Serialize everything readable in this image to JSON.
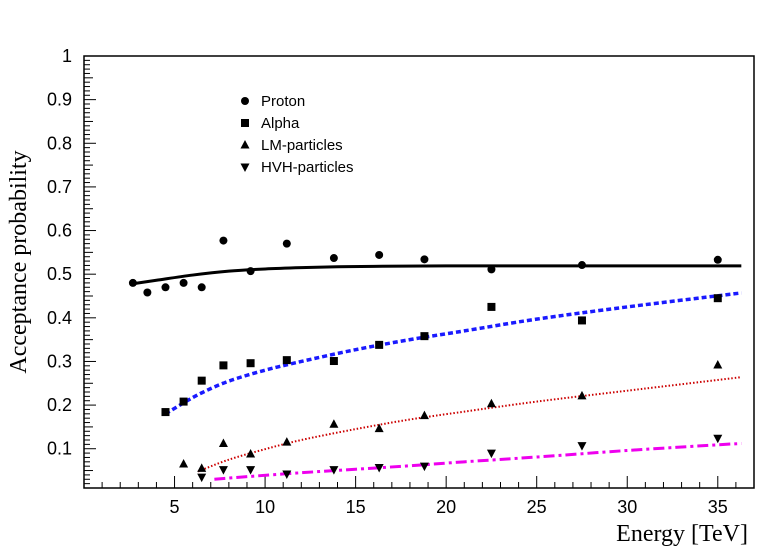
{
  "chart_data": {
    "type": "scatter",
    "title": "",
    "xlabel": "Energy [TeV]",
    "ylabel": "Acceptance probability",
    "xlim": [
      0,
      37
    ],
    "ylim": [
      0.01,
      1.0
    ],
    "x_ticks": [
      5,
      10,
      15,
      20,
      25,
      30,
      35
    ],
    "y_ticks": [
      0.1,
      0.2,
      0.3,
      0.4,
      0.5,
      0.6,
      0.7,
      0.8,
      0.9,
      1
    ],
    "x_tick_labels": [
      "5",
      "10",
      "15",
      "20",
      "25",
      "30",
      "35"
    ],
    "y_tick_labels": [
      "0.1",
      "0.2",
      "0.3",
      "0.4",
      "0.5",
      "0.6",
      "0.7",
      "0.8",
      "0.9",
      "1"
    ],
    "grid": false,
    "legend_position": "top-left-center",
    "series": [
      {
        "name": "Proton",
        "marker": "circle",
        "color": "#000000",
        "points": [
          [
            2.7,
            0.48
          ],
          [
            3.5,
            0.458
          ],
          [
            4.5,
            0.47
          ],
          [
            5.5,
            0.48
          ],
          [
            6.5,
            0.47
          ],
          [
            7.7,
            0.577
          ],
          [
            9.2,
            0.507
          ],
          [
            11.2,
            0.57
          ],
          [
            13.8,
            0.537
          ],
          [
            16.3,
            0.544
          ],
          [
            18.8,
            0.534
          ],
          [
            22.5,
            0.511
          ],
          [
            27.5,
            0.521
          ],
          [
            35.0,
            0.533
          ]
        ],
        "fit": {
          "style": "solid",
          "color": "#000000",
          "points": [
            [
              2.7,
              0.478
            ],
            [
              4,
              0.486
            ],
            [
              6,
              0.498
            ],
            [
              8,
              0.507
            ],
            [
              10,
              0.512
            ],
            [
              12,
              0.515
            ],
            [
              14,
              0.517
            ],
            [
              16,
              0.518
            ],
            [
              20,
              0.519
            ],
            [
              25,
              0.519
            ],
            [
              30,
              0.519
            ],
            [
              36.3,
              0.519
            ]
          ]
        }
      },
      {
        "name": "Alpha",
        "marker": "square",
        "color": "#000000",
        "points": [
          [
            4.5,
            0.184
          ],
          [
            5.5,
            0.208
          ],
          [
            6.5,
            0.256
          ],
          [
            7.7,
            0.291
          ],
          [
            9.2,
            0.296
          ],
          [
            11.2,
            0.303
          ],
          [
            13.8,
            0.301
          ],
          [
            16.3,
            0.338
          ],
          [
            18.8,
            0.358
          ],
          [
            22.5,
            0.425
          ],
          [
            27.5,
            0.394
          ],
          [
            35.0,
            0.445
          ]
        ],
        "fit": {
          "style": "dashed",
          "color": "#1a1aff",
          "points": [
            [
              4.5,
              0.18
            ],
            [
              5.5,
              0.205
            ],
            [
              6.5,
              0.228
            ],
            [
              8,
              0.255
            ],
            [
              10,
              0.28
            ],
            [
              12,
              0.3
            ],
            [
              15,
              0.327
            ],
            [
              18,
              0.35
            ],
            [
              21,
              0.37
            ],
            [
              25,
              0.397
            ],
            [
              30,
              0.425
            ],
            [
              36.3,
              0.457
            ]
          ]
        }
      },
      {
        "name": "LM-particles",
        "marker": "triangle-up",
        "color": "#000000",
        "points": [
          [
            5.5,
            0.065
          ],
          [
            6.5,
            0.055
          ],
          [
            7.7,
            0.112
          ],
          [
            9.2,
            0.088
          ],
          [
            11.2,
            0.115
          ],
          [
            13.8,
            0.156
          ],
          [
            16.3,
            0.146
          ],
          [
            18.8,
            0.176
          ],
          [
            22.5,
            0.203
          ],
          [
            27.5,
            0.221
          ],
          [
            35.0,
            0.292
          ]
        ],
        "fit": {
          "style": "dotted",
          "color": "#cc0000",
          "points": [
            [
              6.3,
              0.048
            ],
            [
              8,
              0.075
            ],
            [
              10,
              0.099
            ],
            [
              12,
              0.12
            ],
            [
              15,
              0.145
            ],
            [
              18,
              0.167
            ],
            [
              21,
              0.185
            ],
            [
              25,
              0.208
            ],
            [
              30,
              0.233
            ],
            [
              36.3,
              0.264
            ]
          ]
        }
      },
      {
        "name": "HVH-particles",
        "marker": "triangle-down",
        "color": "#000000",
        "points": [
          [
            6.5,
            0.035
          ],
          [
            7.7,
            0.052
          ],
          [
            9.2,
            0.052
          ],
          [
            11.2,
            0.042
          ],
          [
            13.8,
            0.052
          ],
          [
            16.3,
            0.057
          ],
          [
            18.8,
            0.06
          ],
          [
            22.5,
            0.09
          ],
          [
            27.5,
            0.107
          ],
          [
            35.0,
            0.124
          ]
        ],
        "fit": {
          "style": "dashdot",
          "color": "#ee00ee",
          "points": [
            [
              7.2,
              0.03
            ],
            [
              9,
              0.036
            ],
            [
              12,
              0.045
            ],
            [
              15,
              0.053
            ],
            [
              18,
              0.061
            ],
            [
              21,
              0.07
            ],
            [
              25,
              0.081
            ],
            [
              30,
              0.096
            ],
            [
              35,
              0.109
            ],
            [
              36.3,
              0.112
            ]
          ]
        }
      }
    ]
  }
}
